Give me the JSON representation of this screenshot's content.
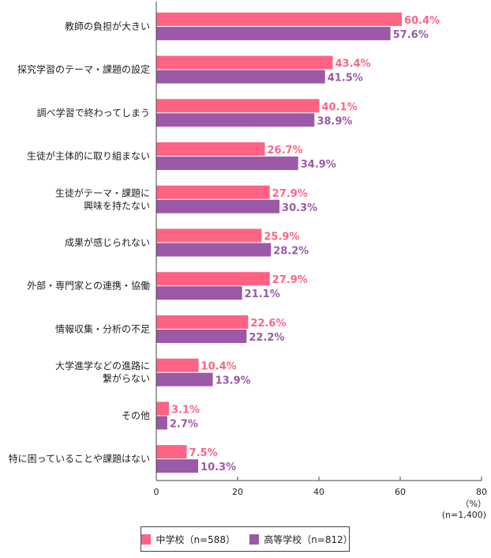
{
  "chart_data": {
    "type": "bar",
    "orientation": "horizontal",
    "categories": [
      [
        "教師の負担が大きい"
      ],
      [
        "探究学習のテーマ・課題の設定"
      ],
      [
        "調べ学習で終わってしまう"
      ],
      [
        "生徒が主体的に取り組まない"
      ],
      [
        "生徒がテーマ・課題に",
        "興味を持たない"
      ],
      [
        "成果が感じられない"
      ],
      [
        "外部・専門家との連携・協働"
      ],
      [
        "情報収集・分析の不足"
      ],
      [
        "大学進学などの進路に",
        "繋がらない"
      ],
      [
        "その他"
      ],
      [
        "特に困っていることや課題はない"
      ]
    ],
    "series": [
      {
        "name": "中学校（n=588）",
        "color": "#ff6384",
        "values": [
          60.4,
          43.4,
          40.1,
          26.7,
          27.9,
          25.9,
          27.9,
          22.6,
          10.4,
          3.1,
          7.5
        ]
      },
      {
        "name": "高等学校（n=812）",
        "color": "#9b59a8",
        "values": [
          57.6,
          41.5,
          38.9,
          34.9,
          30.3,
          28.2,
          21.1,
          22.2,
          13.9,
          2.7,
          10.3
        ]
      }
    ],
    "xlim": [
      0,
      80
    ],
    "xticks": [
      0,
      20,
      40,
      60,
      80
    ],
    "unit_label": "（%）",
    "n_label": "(n=1,400)",
    "grid": false,
    "legend_position": "bottom"
  }
}
